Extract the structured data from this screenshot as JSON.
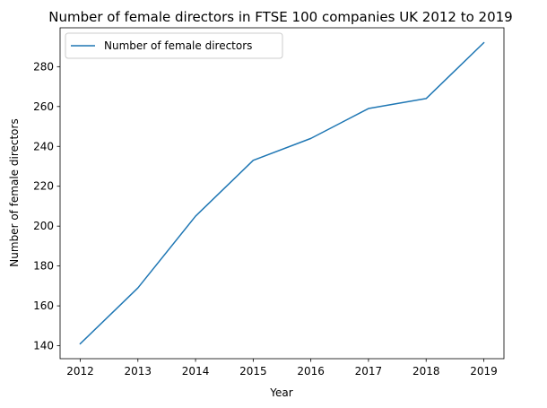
{
  "chart_data": {
    "type": "line",
    "title": "Number of female directors in FTSE 100 companies UK 2012 to 2019",
    "xlabel": "Year",
    "ylabel": "Number of female directors",
    "x": [
      2012,
      2013,
      2014,
      2015,
      2016,
      2017,
      2018,
      2019
    ],
    "x_tick_labels": [
      "2012",
      "2013",
      "2014",
      "2015",
      "2016",
      "2017",
      "2018",
      "2019"
    ],
    "series": [
      {
        "name": "Number of female directors",
        "color": "#1f77b4",
        "values": [
          141,
          169,
          205,
          233,
          244,
          259,
          264,
          292
        ]
      }
    ],
    "y_ticks": [
      140,
      160,
      180,
      200,
      220,
      240,
      260,
      280
    ],
    "xlim": [
      2011.65,
      2019.35
    ],
    "ylim": [
      133.5,
      299.5
    ],
    "grid": false,
    "legend_position": "top-left"
  }
}
